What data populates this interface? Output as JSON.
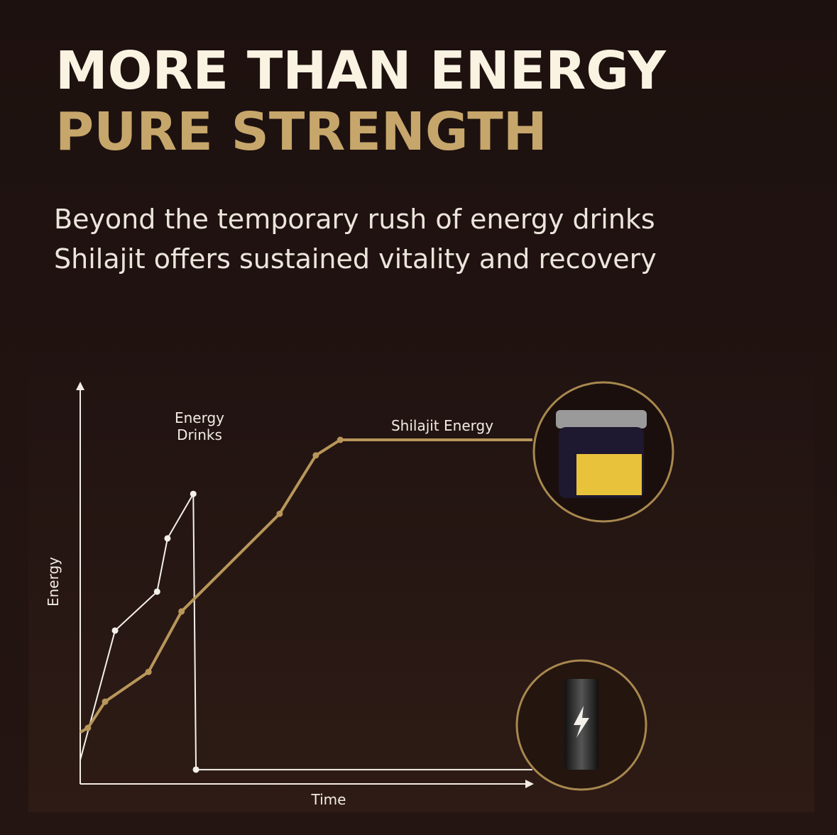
{
  "chart_data": {
    "type": "line",
    "title": [
      "MORE THAN ENERGY",
      "PURE STRENGTH"
    ],
    "subtitle": [
      "Beyond the temporary rush of energy drinks",
      "Shilajit offers sustained vitality and recovery"
    ],
    "xlabel": "Time",
    "ylabel": "Energy",
    "xlim": [
      0,
      100
    ],
    "ylim": [
      0,
      100
    ],
    "series": [
      {
        "name": "Energy Drinks",
        "color": "#f4f0ea",
        "x": [
          0,
          7.7,
          17.0,
          19.3,
          25.0,
          25.6,
          100
        ],
        "values": [
          6,
          38.6,
          48.4,
          61.8,
          73.0,
          3.6,
          3.6
        ]
      },
      {
        "name": "Shilajit Energy",
        "color": "#b8965a",
        "x": [
          0,
          1.7,
          5.5,
          15.1,
          22.4,
          44.1,
          52.1,
          57.5,
          100
        ],
        "values": [
          13.0,
          14.1,
          20.7,
          28.2,
          43.4,
          68.0,
          82.7,
          86.6,
          86.6
        ]
      }
    ]
  }
}
